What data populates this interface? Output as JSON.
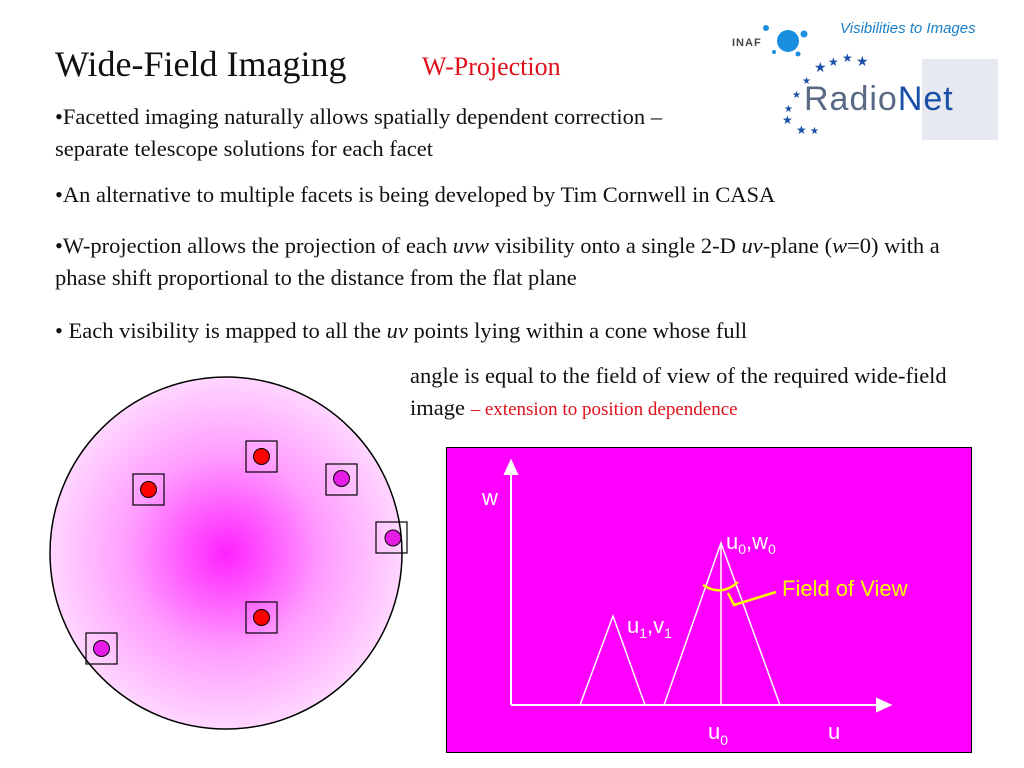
{
  "slide": {
    "title": "Wide-Field Imaging",
    "subtitle": "W-Projection"
  },
  "logo": {
    "tagline": "Visibilities to Images",
    "inaf": "INAF",
    "radionet_a": "Radio",
    "radionet_b": "Net"
  },
  "bullets": {
    "b1": "•Facetted imaging naturally allows spatially dependent correction – separate telescope solutions for each facet",
    "b2": "•An alternative to multiple facets is being developed by Tim Cornwell in CASA",
    "b3_pre": "•W-projection allows the projection of each ",
    "b3_em1": "uvw",
    "b3_mid": " visibility onto a single 2-D ",
    "b3_em2": "uv",
    "b3_mid2": "-plane (",
    "b3_em3": "w",
    "b3_post": "=0) with a phase shift proportional to the distance from the flat plane",
    "b4_pre": "• Each visibility is mapped to all the ",
    "b4_em": "uv",
    "b4_post": " points lying within a cone whose full",
    "b4_cont": "angle is equal to the field of view of the required wide-field image ",
    "b4_red": "– extension to position dependence"
  },
  "diagram": {
    "w_label": "w",
    "u_label": "u",
    "u0w0_base_u": "u",
    "u0w0_sub_u": "0",
    "u0w0_comma": ",w",
    "u0w0_sub_w": "0",
    "u1v1_base_u": "u",
    "u1v1_sub_u": "1",
    "u1v1_comma": ",v",
    "u1v1_sub_v": "1",
    "u0_base": "u",
    "u0_sub": "0",
    "fov_label": "Field of View",
    "colors": {
      "panel": "#ff00ff",
      "axis": "#ffffff",
      "fov": "#ffff00"
    }
  },
  "facets": {
    "colors": {
      "disk_center": "#ff22ff",
      "disk_edge": "#ffd6ff",
      "red_source": "#ff0000",
      "magenta_source": "#e51ce5"
    }
  }
}
